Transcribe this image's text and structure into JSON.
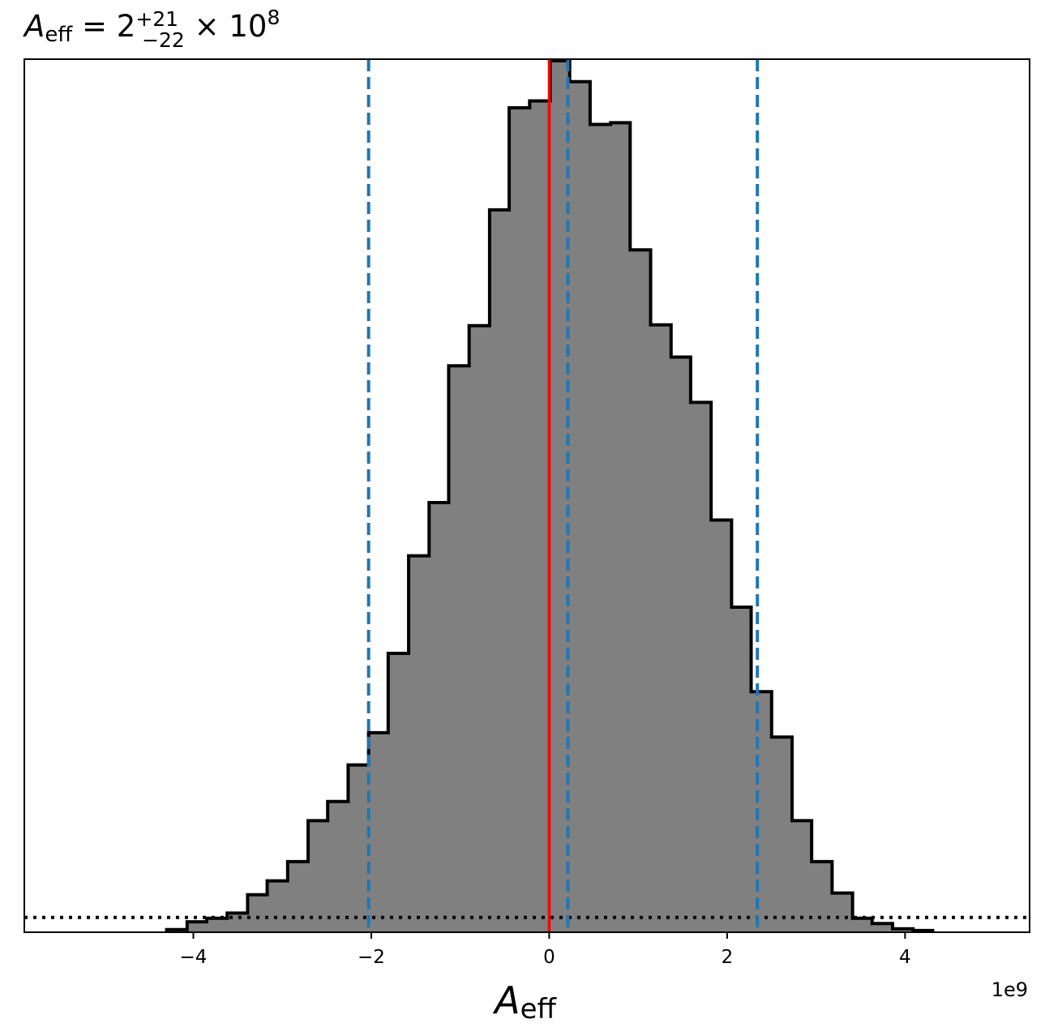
{
  "chart_data": {
    "type": "histogram",
    "title": {
      "symbol": "A",
      "subscript": "eff",
      "equals": " = 2",
      "sup": "+21",
      "sub": "−22",
      "times": " × 10",
      "exp": "8"
    },
    "xlabel": {
      "symbol": "A",
      "subscript": "eff"
    },
    "x_offset_label": "1e9",
    "x_scale": 1000000000,
    "xlim": [
      -5.9,
      5.4
    ],
    "ylim": [
      0,
      1.0
    ],
    "yaxis_visible": false,
    "x_ticks": [
      -4,
      -2,
      0,
      2,
      4
    ],
    "x_tick_labels": [
      "−4",
      "−2",
      "0",
      "2",
      "4"
    ],
    "bin_edges": [
      -4.3,
      -4.07,
      -3.85,
      -3.62,
      -3.39,
      -3.17,
      -2.94,
      -2.71,
      -2.49,
      -2.26,
      -2.03,
      -1.81,
      -1.58,
      -1.35,
      -1.13,
      -0.9,
      -0.67,
      -0.45,
      -0.22,
      0.01,
      0.23,
      0.46,
      0.69,
      0.91,
      1.14,
      1.37,
      1.59,
      1.82,
      2.05,
      2.27,
      2.5,
      2.73,
      2.95,
      3.18,
      3.41,
      3.63,
      3.86,
      4.09,
      4.31
    ],
    "counts": [
      0.003,
      0.012,
      0.016,
      0.022,
      0.043,
      0.059,
      0.081,
      0.128,
      0.15,
      0.192,
      0.229,
      0.32,
      0.432,
      0.493,
      0.65,
      0.696,
      0.829,
      0.946,
      0.954,
      1.0,
      0.976,
      0.927,
      0.929,
      0.783,
      0.697,
      0.66,
      0.608,
      0.473,
      0.373,
      0.276,
      0.224,
      0.128,
      0.081,
      0.045,
      0.016,
      0.01,
      0.004,
      0.002
    ],
    "fill_color": "#808080",
    "edge_color": "#000000",
    "median_line": {
      "x": 0.0,
      "color": "#ff0000"
    },
    "quantile_lines": {
      "x": [
        -2.03,
        0.21,
        2.34
      ],
      "color": "#1f77b4",
      "style": "dashed"
    },
    "baseline_line": {
      "y": 0.017,
      "color": "#000000",
      "style": "dotted"
    }
  }
}
